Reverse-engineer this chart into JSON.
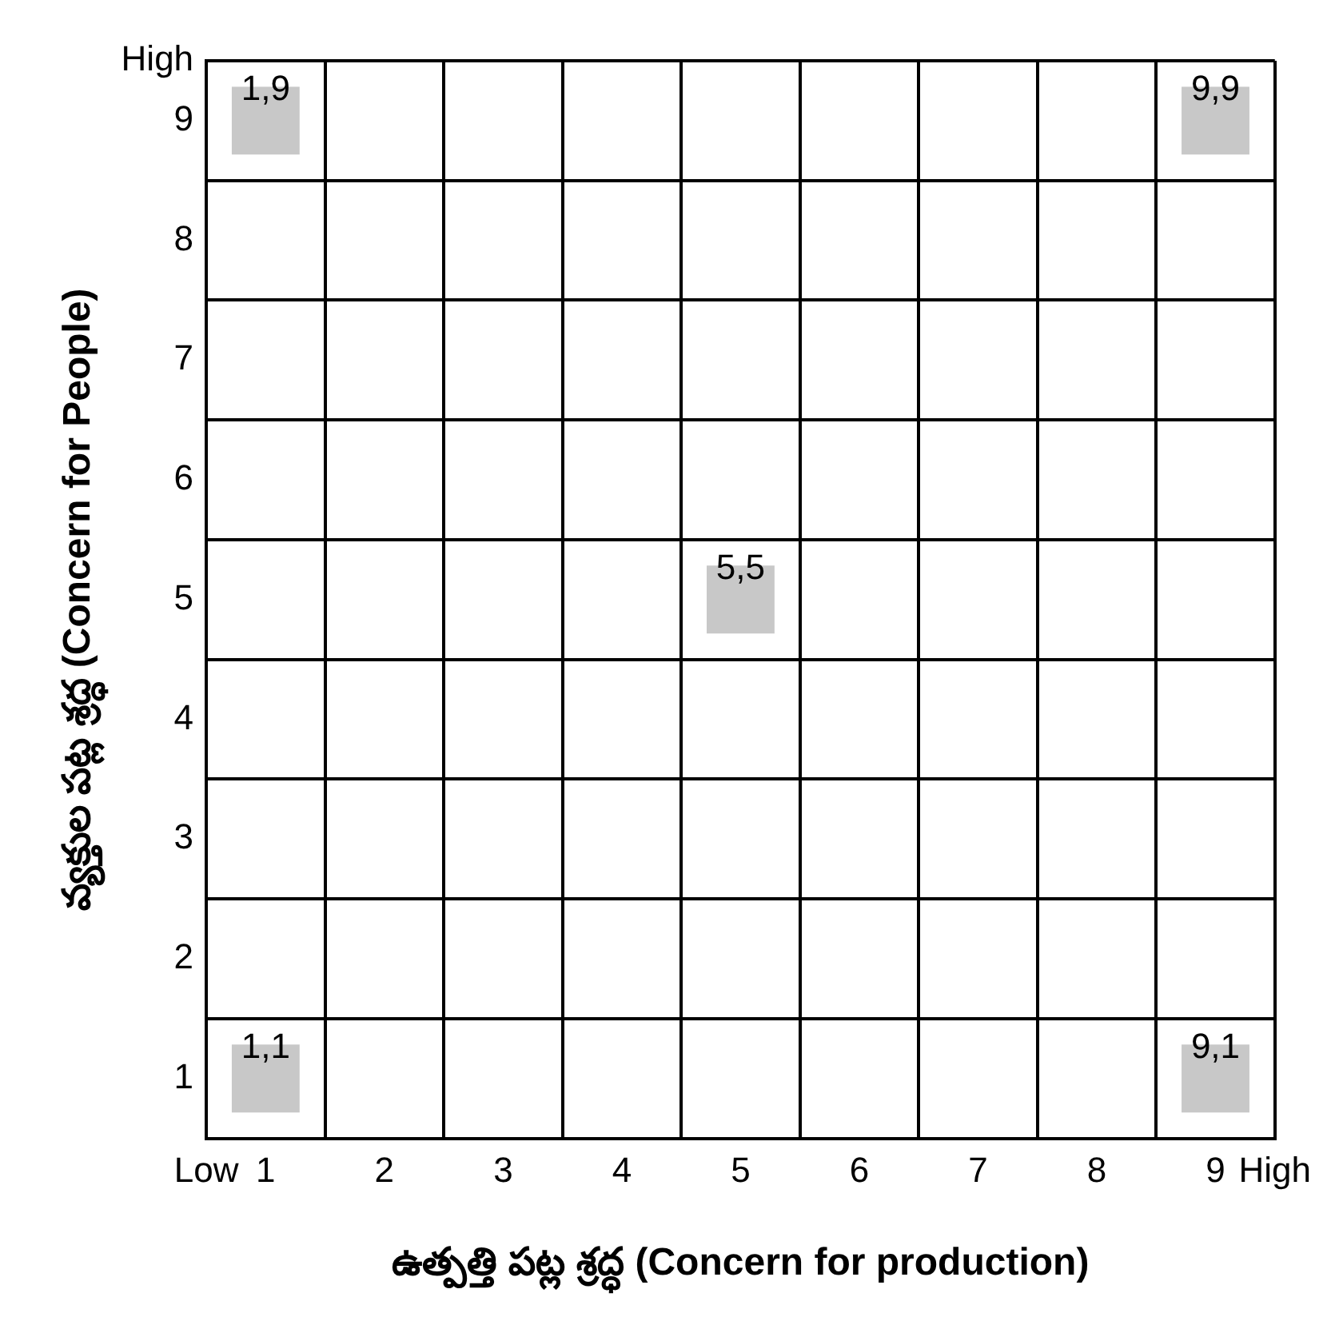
{
  "chart_data": {
    "type": "scatter",
    "xlabel": "ఉత్పత్తి పట్ల శ్రద్ధ (Concern for production)",
    "ylabel": "వ్యక్తుల పట్ల శ్రద్ధ (Concern for People)",
    "xlim": [
      0.5,
      9.5
    ],
    "ylim": [
      0.5,
      9.5
    ],
    "xticks": [
      {
        "value": 0.5,
        "label": "Low"
      },
      1,
      {
        "value": 1.5,
        "label": null
      },
      2,
      {
        "value": 2.5,
        "label": null
      },
      3,
      {
        "value": 3.5,
        "label": null
      },
      4,
      {
        "value": 4.5,
        "label": null
      },
      5,
      {
        "value": 5.5,
        "label": null
      },
      6,
      {
        "value": 6.5,
        "label": null
      },
      7,
      {
        "value": 7.5,
        "label": null
      },
      8,
      {
        "value": 8.5,
        "label": null
      },
      9,
      {
        "value": 9.5,
        "label": "High"
      }
    ],
    "yticks": [
      {
        "value": 0.5,
        "label": null
      },
      1,
      {
        "value": 1.5,
        "label": null
      },
      2,
      {
        "value": 2.5,
        "label": null
      },
      3,
      {
        "value": 3.5,
        "label": null
      },
      4,
      {
        "value": 4.5,
        "label": null
      },
      5,
      {
        "value": 5.5,
        "label": null
      },
      6,
      {
        "value": 6.5,
        "label": null
      },
      7,
      {
        "value": 7.5,
        "label": null
      },
      8,
      {
        "value": 8.5,
        "label": null
      },
      9,
      {
        "value": 9.5,
        "label": "High"
      }
    ],
    "grid": true,
    "legend": false,
    "marker": "square",
    "series": [
      {
        "type": "scatter",
        "color": "#c8c8c8",
        "x": [
          1,
          1,
          5,
          9,
          9
        ],
        "values": [
          1,
          9,
          5,
          1,
          9
        ]
      }
    ],
    "annotations": [
      {
        "text": "1,1",
        "x": 1,
        "y": 1
      },
      {
        "text": "1,9",
        "x": 1,
        "y": 9
      },
      {
        "text": "5,5",
        "x": 5,
        "y": 5
      },
      {
        "text": "9,1",
        "x": 9,
        "y": 1
      },
      {
        "text": "9,9",
        "x": 9,
        "y": 9
      }
    ]
  }
}
